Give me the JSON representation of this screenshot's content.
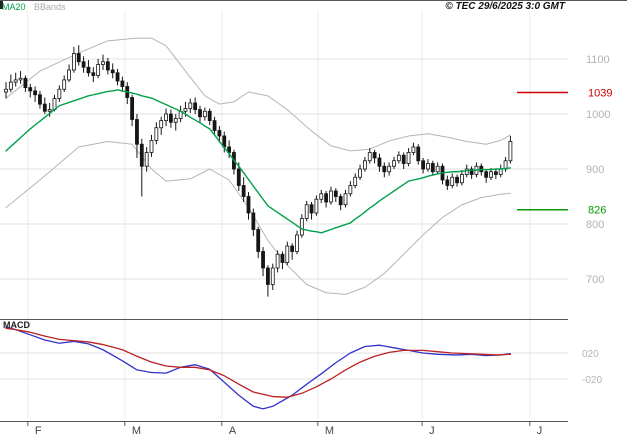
{
  "chart_data": {
    "type": "candlestick+macd",
    "legend": [
      "MA20",
      "BBands"
    ],
    "copyright": "© TEC 29/6/2025 3:0 GMT",
    "price_axis": {
      "ticks": [
        1100,
        1000,
        900,
        800,
        700
      ],
      "range": [
        650,
        1160
      ]
    },
    "markers": [
      {
        "label": "1039",
        "value": 1039,
        "color": "#cc0000"
      },
      {
        "label": "826",
        "value": 826,
        "color": "#009900"
      }
    ],
    "months": {
      "labels": [
        "F",
        "M",
        "A",
        "M",
        "J",
        "J"
      ],
      "boundaries_i": [
        4.5,
        24.5,
        44.5,
        64.3,
        85.8,
        108
      ]
    },
    "colors": {
      "ma20": "#00a14b",
      "bbands": "#b5b5b5",
      "bbands_label": "#aaaaaa",
      "candle": "#161616",
      "grid_h": "#e0e0e0",
      "grid_v": "#ececec",
      "axis_text": "#b3b3b3",
      "month_text": "#444444",
      "frame": "#555555"
    },
    "candles_ohlc": [
      [
        1040,
        1058,
        1028,
        1045
      ],
      [
        1045,
        1072,
        1040,
        1058
      ],
      [
        1058,
        1075,
        1050,
        1062
      ],
      [
        1062,
        1078,
        1055,
        1065
      ],
      [
        1065,
        1070,
        1040,
        1048
      ],
      [
        1048,
        1055,
        1030,
        1042
      ],
      [
        1042,
        1050,
        1022,
        1035
      ],
      [
        1035,
        1042,
        1010,
        1018
      ],
      [
        1018,
        1030,
        1000,
        1005
      ],
      [
        1005,
        1020,
        995,
        1008
      ],
      [
        1008,
        1035,
        1005,
        1028
      ],
      [
        1028,
        1052,
        1022,
        1045
      ],
      [
        1045,
        1070,
        1040,
        1062
      ],
      [
        1062,
        1090,
        1058,
        1080
      ],
      [
        1080,
        1122,
        1075,
        1110
      ],
      [
        1110,
        1125,
        1088,
        1095
      ],
      [
        1095,
        1105,
        1075,
        1085
      ],
      [
        1085,
        1098,
        1068,
        1075
      ],
      [
        1075,
        1085,
        1058,
        1070
      ],
      [
        1070,
        1100,
        1065,
        1090
      ],
      [
        1090,
        1108,
        1080,
        1095
      ],
      [
        1095,
        1102,
        1072,
        1080
      ],
      [
        1080,
        1092,
        1065,
        1075
      ],
      [
        1075,
        1082,
        1052,
        1060
      ],
      [
        1060,
        1068,
        1040,
        1050
      ],
      [
        1050,
        1058,
        1018,
        1030
      ],
      [
        1030,
        1035,
        978,
        990
      ],
      [
        990,
        1000,
        920,
        945
      ],
      [
        945,
        955,
        850,
        905
      ],
      [
        905,
        940,
        895,
        930
      ],
      [
        930,
        962,
        922,
        952
      ],
      [
        952,
        985,
        945,
        975
      ],
      [
        975,
        995,
        962,
        988
      ],
      [
        988,
        1010,
        978,
        1000
      ],
      [
        1000,
        1008,
        975,
        985
      ],
      [
        985,
        1000,
        970,
        992
      ],
      [
        992,
        1015,
        985,
        1005
      ],
      [
        1005,
        1022,
        995,
        1010
      ],
      [
        1010,
        1028,
        1002,
        1020
      ],
      [
        1020,
        1030,
        1000,
        1008
      ],
      [
        1008,
        1015,
        985,
        995
      ],
      [
        995,
        1012,
        988,
        1005
      ],
      [
        1005,
        1010,
        980,
        988
      ],
      [
        988,
        995,
        962,
        970
      ],
      [
        970,
        978,
        948,
        960
      ],
      [
        960,
        968,
        930,
        940
      ],
      [
        940,
        952,
        920,
        930
      ],
      [
        930,
        935,
        890,
        900
      ],
      [
        900,
        912,
        860,
        870
      ],
      [
        870,
        885,
        840,
        850
      ],
      [
        850,
        858,
        808,
        820
      ],
      [
        820,
        828,
        778,
        790
      ],
      [
        790,
        795,
        738,
        750
      ],
      [
        750,
        758,
        705,
        720
      ],
      [
        720,
        725,
        668,
        690
      ],
      [
        690,
        728,
        680,
        720
      ],
      [
        720,
        752,
        712,
        745
      ],
      [
        745,
        750,
        718,
        730
      ],
      [
        730,
        768,
        725,
        760
      ],
      [
        760,
        765,
        735,
        750
      ],
      [
        750,
        788,
        745,
        780
      ],
      [
        780,
        818,
        775,
        810
      ],
      [
        810,
        842,
        805,
        835
      ],
      [
        835,
        840,
        808,
        820
      ],
      [
        820,
        852,
        815,
        845
      ],
      [
        845,
        862,
        838,
        855
      ],
      [
        855,
        860,
        830,
        840
      ],
      [
        840,
        868,
        835,
        860
      ],
      [
        860,
        865,
        840,
        850
      ],
      [
        850,
        855,
        825,
        835
      ],
      [
        835,
        862,
        830,
        855
      ],
      [
        855,
        878,
        850,
        870
      ],
      [
        870,
        892,
        865,
        885
      ],
      [
        885,
        908,
        880,
        900
      ],
      [
        900,
        922,
        895,
        915
      ],
      [
        915,
        938,
        910,
        930
      ],
      [
        930,
        935,
        910,
        920
      ],
      [
        920,
        928,
        895,
        905
      ],
      [
        905,
        912,
        885,
        895
      ],
      [
        895,
        912,
        888,
        905
      ],
      [
        905,
        922,
        900,
        915
      ],
      [
        915,
        932,
        910,
        925
      ],
      [
        925,
        930,
        900,
        910
      ],
      [
        910,
        938,
        905,
        930
      ],
      [
        930,
        948,
        925,
        940
      ],
      [
        940,
        945,
        908,
        915
      ],
      [
        915,
        920,
        892,
        900
      ],
      [
        900,
        918,
        895,
        910
      ],
      [
        910,
        915,
        888,
        895
      ],
      [
        895,
        912,
        890,
        905
      ],
      [
        905,
        910,
        872,
        880
      ],
      [
        880,
        888,
        862,
        870
      ],
      [
        870,
        892,
        865,
        885
      ],
      [
        885,
        890,
        868,
        875
      ],
      [
        875,
        898,
        870,
        890
      ],
      [
        890,
        908,
        885,
        900
      ],
      [
        900,
        905,
        882,
        890
      ],
      [
        890,
        912,
        885,
        905
      ],
      [
        905,
        910,
        888,
        895
      ],
      [
        895,
        900,
        875,
        885
      ],
      [
        885,
        902,
        880,
        895
      ],
      [
        895,
        900,
        882,
        890
      ],
      [
        890,
        908,
        885,
        900
      ],
      [
        900,
        922,
        895,
        915
      ],
      [
        915,
        960,
        910,
        950
      ]
    ],
    "ma20": [
      933,
      941,
      949,
      957,
      965,
      973,
      980,
      987,
      994,
      1001,
      1008,
      1015,
      1018,
      1021,
      1024,
      1027,
      1030,
      1033,
      1035,
      1037,
      1039,
      1041,
      1042,
      1044,
      1042,
      1040,
      1038,
      1036,
      1033,
      1031,
      1029,
      1025,
      1021,
      1017,
      1013,
      1009,
      1005,
      1000,
      994,
      989,
      984,
      978,
      973,
      962,
      950,
      939,
      928,
      916,
      905,
      893,
      881,
      869,
      857,
      845,
      833,
      827,
      821,
      815,
      809,
      803,
      797,
      791,
      789,
      787,
      786,
      784,
      787,
      790,
      793,
      796,
      799,
      802,
      809,
      815,
      822,
      829,
      835,
      842,
      848,
      854,
      860,
      866,
      872,
      878,
      880,
      882,
      884,
      887,
      889,
      891,
      893,
      894,
      895,
      895,
      896,
      897,
      898,
      898,
      899,
      899,
      899,
      900,
      900,
      901,
      902
    ],
    "bb_upper": [
      [
        0,
        1029
      ],
      [
        7,
        1078
      ],
      [
        15,
        1111
      ],
      [
        21,
        1133
      ],
      [
        27,
        1138
      ],
      [
        30,
        1138
      ],
      [
        33,
        1124
      ],
      [
        37,
        1078
      ],
      [
        41,
        1033
      ],
      [
        44,
        1018
      ],
      [
        47,
        1022
      ],
      [
        50,
        1040
      ],
      [
        54,
        1033
      ],
      [
        58,
        1008
      ],
      [
        63,
        969
      ],
      [
        67,
        942
      ],
      [
        71,
        933
      ],
      [
        75,
        936
      ],
      [
        79,
        951
      ],
      [
        83,
        960
      ],
      [
        87,
        964
      ],
      [
        91,
        958
      ],
      [
        95,
        950
      ],
      [
        99,
        945
      ],
      [
        102,
        952
      ],
      [
        104,
        962
      ]
    ],
    "bb_lower": [
      [
        0,
        830
      ],
      [
        7,
        880
      ],
      [
        15,
        940
      ],
      [
        21,
        950
      ],
      [
        26,
        945
      ],
      [
        30,
        900
      ],
      [
        33,
        878
      ],
      [
        38,
        882
      ],
      [
        42,
        900
      ],
      [
        46,
        880
      ],
      [
        50,
        830
      ],
      [
        54,
        770
      ],
      [
        58,
        725
      ],
      [
        62,
        690
      ],
      [
        66,
        675
      ],
      [
        70,
        672
      ],
      [
        74,
        685
      ],
      [
        78,
        710
      ],
      [
        82,
        745
      ],
      [
        86,
        780
      ],
      [
        90,
        812
      ],
      [
        94,
        835
      ],
      [
        98,
        848
      ],
      [
        102,
        854
      ],
      [
        104,
        856
      ]
    ],
    "macd": {
      "label": "MACD",
      "ticks": [
        {
          "label": "020",
          "value": 0.2
        },
        {
          "label": "-020",
          "value": -0.2
        }
      ],
      "colors": {
        "line": "#3333cc",
        "signal": "#bb2222"
      },
      "line": [
        [
          0,
          0.6
        ],
        [
          2,
          0.56
        ],
        [
          5,
          0.48
        ],
        [
          8,
          0.4
        ],
        [
          11,
          0.35
        ],
        [
          14,
          0.38
        ],
        [
          17,
          0.34
        ],
        [
          20,
          0.25
        ],
        [
          24,
          0.08
        ],
        [
          27,
          -0.06
        ],
        [
          30,
          -0.1
        ],
        [
          33,
          -0.11
        ],
        [
          36,
          -0.02
        ],
        [
          39,
          0.02
        ],
        [
          42,
          -0.05
        ],
        [
          45,
          -0.25
        ],
        [
          48,
          -0.45
        ],
        [
          51,
          -0.62
        ],
        [
          53,
          -0.66
        ],
        [
          55,
          -0.62
        ],
        [
          59,
          -0.45
        ],
        [
          62,
          -0.28
        ],
        [
          65,
          -0.12
        ],
        [
          68,
          0.05
        ],
        [
          71,
          0.2
        ],
        [
          74,
          0.3
        ],
        [
          77,
          0.32
        ],
        [
          80,
          0.28
        ],
        [
          83,
          0.24
        ],
        [
          86,
          0.2
        ],
        [
          89,
          0.18
        ],
        [
          93,
          0.17
        ],
        [
          96,
          0.18
        ],
        [
          99,
          0.16
        ],
        [
          102,
          0.17
        ],
        [
          104,
          0.19
        ]
      ],
      "signal": [
        [
          0,
          0.58
        ],
        [
          2,
          0.56
        ],
        [
          5,
          0.52
        ],
        [
          8,
          0.46
        ],
        [
          11,
          0.41
        ],
        [
          14,
          0.39
        ],
        [
          17,
          0.37
        ],
        [
          20,
          0.33
        ],
        [
          24,
          0.25
        ],
        [
          27,
          0.15
        ],
        [
          30,
          0.06
        ],
        [
          33,
          0.0
        ],
        [
          36,
          -0.02
        ],
        [
          39,
          -0.02
        ],
        [
          42,
          -0.06
        ],
        [
          45,
          -0.15
        ],
        [
          48,
          -0.28
        ],
        [
          51,
          -0.4
        ],
        [
          55,
          -0.47
        ],
        [
          58,
          -0.48
        ],
        [
          61,
          -0.42
        ],
        [
          64,
          -0.32
        ],
        [
          67,
          -0.2
        ],
        [
          70,
          -0.06
        ],
        [
          73,
          0.06
        ],
        [
          76,
          0.15
        ],
        [
          79,
          0.21
        ],
        [
          82,
          0.24
        ],
        [
          86,
          0.24
        ],
        [
          89,
          0.22
        ],
        [
          92,
          0.2
        ],
        [
          95,
          0.19
        ],
        [
          98,
          0.18
        ],
        [
          101,
          0.17
        ],
        [
          104,
          0.18
        ]
      ]
    }
  }
}
